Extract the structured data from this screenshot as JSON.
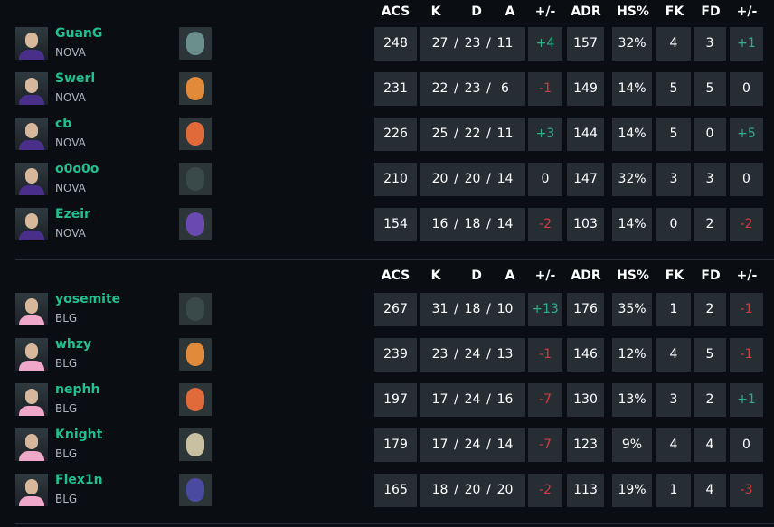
{
  "headers": [
    "ACS",
    "K",
    "D",
    "A",
    "+/-",
    "ADR",
    "HS%",
    "FK",
    "FD",
    "+/-"
  ],
  "colors": {
    "positive": "#2fae8a",
    "negative": "#d13a3e",
    "name": "#23c08f",
    "cell": "#262e33",
    "background": "#0a0d12"
  },
  "teams": [
    {
      "players": [
        {
          "name": "GuanG",
          "team": "NOVA",
          "agent_icon": "agent-sage-icon",
          "acs": "248",
          "k": "27",
          "d": "23",
          "a": "11",
          "kd_diff": "+4",
          "adr": "157",
          "hs": "32%",
          "fk": "4",
          "fd": "3",
          "fk_diff": "+1"
        },
        {
          "name": "Swerl",
          "team": "NOVA",
          "agent_icon": "agent-raze-icon",
          "acs": "231",
          "k": "22",
          "d": "23",
          "a": "6",
          "kd_diff": "-1",
          "adr": "149",
          "hs": "14%",
          "fk": "5",
          "fd": "5",
          "fk_diff": "0"
        },
        {
          "name": "cb",
          "team": "NOVA",
          "agent_icon": "agent-phoenix-icon",
          "acs": "226",
          "k": "25",
          "d": "22",
          "a": "11",
          "kd_diff": "+3",
          "adr": "144",
          "hs": "14%",
          "fk": "5",
          "fd": "0",
          "fk_diff": "+5"
        },
        {
          "name": "o0o0o",
          "team": "NOVA",
          "agent_icon": "agent-viper-icon",
          "acs": "210",
          "k": "20",
          "d": "20",
          "a": "14",
          "kd_diff": "0",
          "adr": "147",
          "hs": "32%",
          "fk": "3",
          "fd": "3",
          "fk_diff": "0"
        },
        {
          "name": "Ezeir",
          "team": "NOVA",
          "agent_icon": "agent-neon-icon",
          "acs": "154",
          "k": "16",
          "d": "18",
          "a": "14",
          "kd_diff": "-2",
          "adr": "103",
          "hs": "14%",
          "fk": "0",
          "fd": "2",
          "fk_diff": "-2"
        }
      ]
    },
    {
      "players": [
        {
          "name": "yosemite",
          "team": "BLG",
          "agent_icon": "agent-viper-icon",
          "acs": "267",
          "k": "31",
          "d": "18",
          "a": "10",
          "kd_diff": "+13",
          "adr": "176",
          "hs": "35%",
          "fk": "1",
          "fd": "2",
          "fk_diff": "-1"
        },
        {
          "name": "whzy",
          "team": "BLG",
          "agent_icon": "agent-raze-icon",
          "acs": "239",
          "k": "23",
          "d": "24",
          "a": "13",
          "kd_diff": "-1",
          "adr": "146",
          "hs": "12%",
          "fk": "4",
          "fd": "5",
          "fk_diff": "-1"
        },
        {
          "name": "nephh",
          "team": "BLG",
          "agent_icon": "agent-phoenix-icon",
          "acs": "197",
          "k": "17",
          "d": "24",
          "a": "16",
          "kd_diff": "-7",
          "adr": "130",
          "hs": "13%",
          "fk": "3",
          "fd": "2",
          "fk_diff": "+1"
        },
        {
          "name": "Knight",
          "team": "BLG",
          "agent_icon": "agent-killjoy-icon",
          "acs": "179",
          "k": "17",
          "d": "24",
          "a": "14",
          "kd_diff": "-7",
          "adr": "123",
          "hs": "9%",
          "fk": "4",
          "fd": "4",
          "fk_diff": "0"
        },
        {
          "name": "Flex1n",
          "team": "BLG",
          "agent_icon": "agent-omen-icon",
          "acs": "165",
          "k": "18",
          "d": "20",
          "a": "20",
          "kd_diff": "-2",
          "adr": "113",
          "hs": "19%",
          "fk": "1",
          "fd": "4",
          "fk_diff": "-3"
        }
      ]
    }
  ]
}
